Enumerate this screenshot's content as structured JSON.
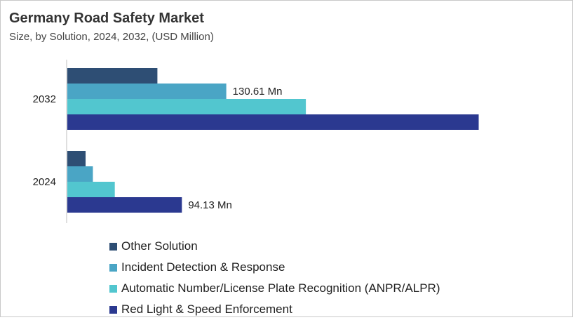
{
  "header": {
    "title": "Germany Road Safety Market",
    "subtitle": "Size, by Solution, 2024, 2032, (USD Million)"
  },
  "chart_data": {
    "type": "bar",
    "orientation": "horizontal",
    "title": "Germany Road Safety Market",
    "subtitle": "Size, by Solution, 2024, 2032, (USD Million)",
    "xlabel": "",
    "ylabel": "",
    "categories": [
      "2032",
      "2024"
    ],
    "xlim": [
      0,
      340
    ],
    "grid": false,
    "legend_position": "bottom",
    "series": [
      {
        "name": "Other Solution",
        "color": "#2e4e74",
        "values": [
          74,
          15
        ]
      },
      {
        "name": "Incident Detection & Response",
        "color": "#4aa5c5",
        "values": [
          130.61,
          21
        ]
      },
      {
        "name": "Automatic Number/License Plate Recognition (ANPR/ALPR)",
        "color": "#52c6cf",
        "values": [
          196,
          39
        ]
      },
      {
        "name": "Red Light & Speed Enforcement",
        "color": "#2b3990",
        "values": [
          338,
          94.13
        ]
      }
    ],
    "data_labels": [
      {
        "series": 1,
        "category": 0,
        "text": "130.61 Mn"
      },
      {
        "series": 3,
        "category": 1,
        "text": "94.13 Mn"
      }
    ]
  }
}
